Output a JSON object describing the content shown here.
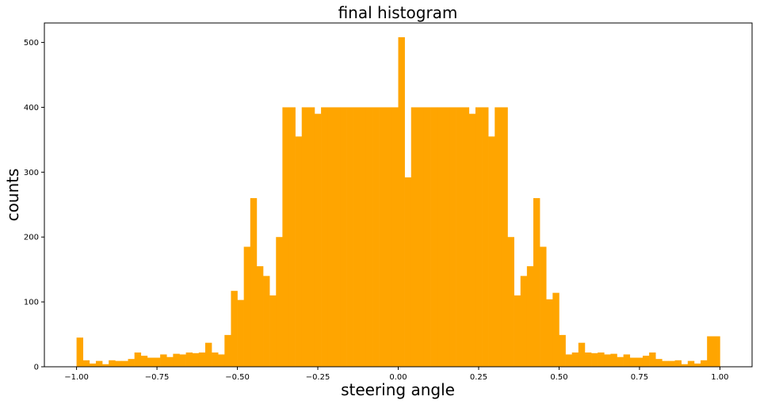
{
  "chart_data": {
    "type": "bar",
    "title": "final histogram",
    "xlabel": "steering angle",
    "ylabel": "counts",
    "xlim": [
      -1.1,
      1.1
    ],
    "ylim": [
      0,
      530
    ],
    "xticks": [
      -1.0,
      -0.75,
      -0.5,
      -0.25,
      0.0,
      0.25,
      0.5,
      0.75,
      1.0
    ],
    "xtick_labels": [
      "−1.00",
      "−0.75",
      "−0.50",
      "−0.25",
      "0.00",
      "0.25",
      "0.50",
      "0.75",
      "1.00"
    ],
    "yticks": [
      0,
      100,
      200,
      300,
      400,
      500
    ],
    "ytick_labels": [
      "0",
      "100",
      "200",
      "300",
      "400",
      "500"
    ],
    "bin_range": [
      -1.0,
      1.0
    ],
    "bins": 100,
    "grid": false,
    "color": "#FFA500",
    "values": [
      45,
      10,
      5,
      9,
      4,
      10,
      9,
      9,
      12,
      22,
      17,
      14,
      14,
      19,
      15,
      20,
      19,
      22,
      21,
      22,
      37,
      22,
      19,
      49,
      117,
      103,
      185,
      260,
      155,
      140,
      110,
      200,
      400,
      400,
      355,
      400,
      400,
      390,
      400,
      400,
      400,
      400,
      400,
      400,
      400,
      400,
      400,
      400,
      400,
      400,
      508,
      292,
      400,
      400,
      400,
      400,
      400,
      400,
      400,
      400,
      400,
      390,
      400,
      400,
      355,
      400,
      400,
      200,
      110,
      140,
      155,
      260,
      185,
      104,
      114,
      49,
      19,
      22,
      37,
      22,
      21,
      22,
      19,
      20,
      15,
      19,
      14,
      14,
      17,
      22,
      12,
      9,
      9,
      10,
      4,
      9,
      5,
      10,
      47,
      47
    ]
  }
}
